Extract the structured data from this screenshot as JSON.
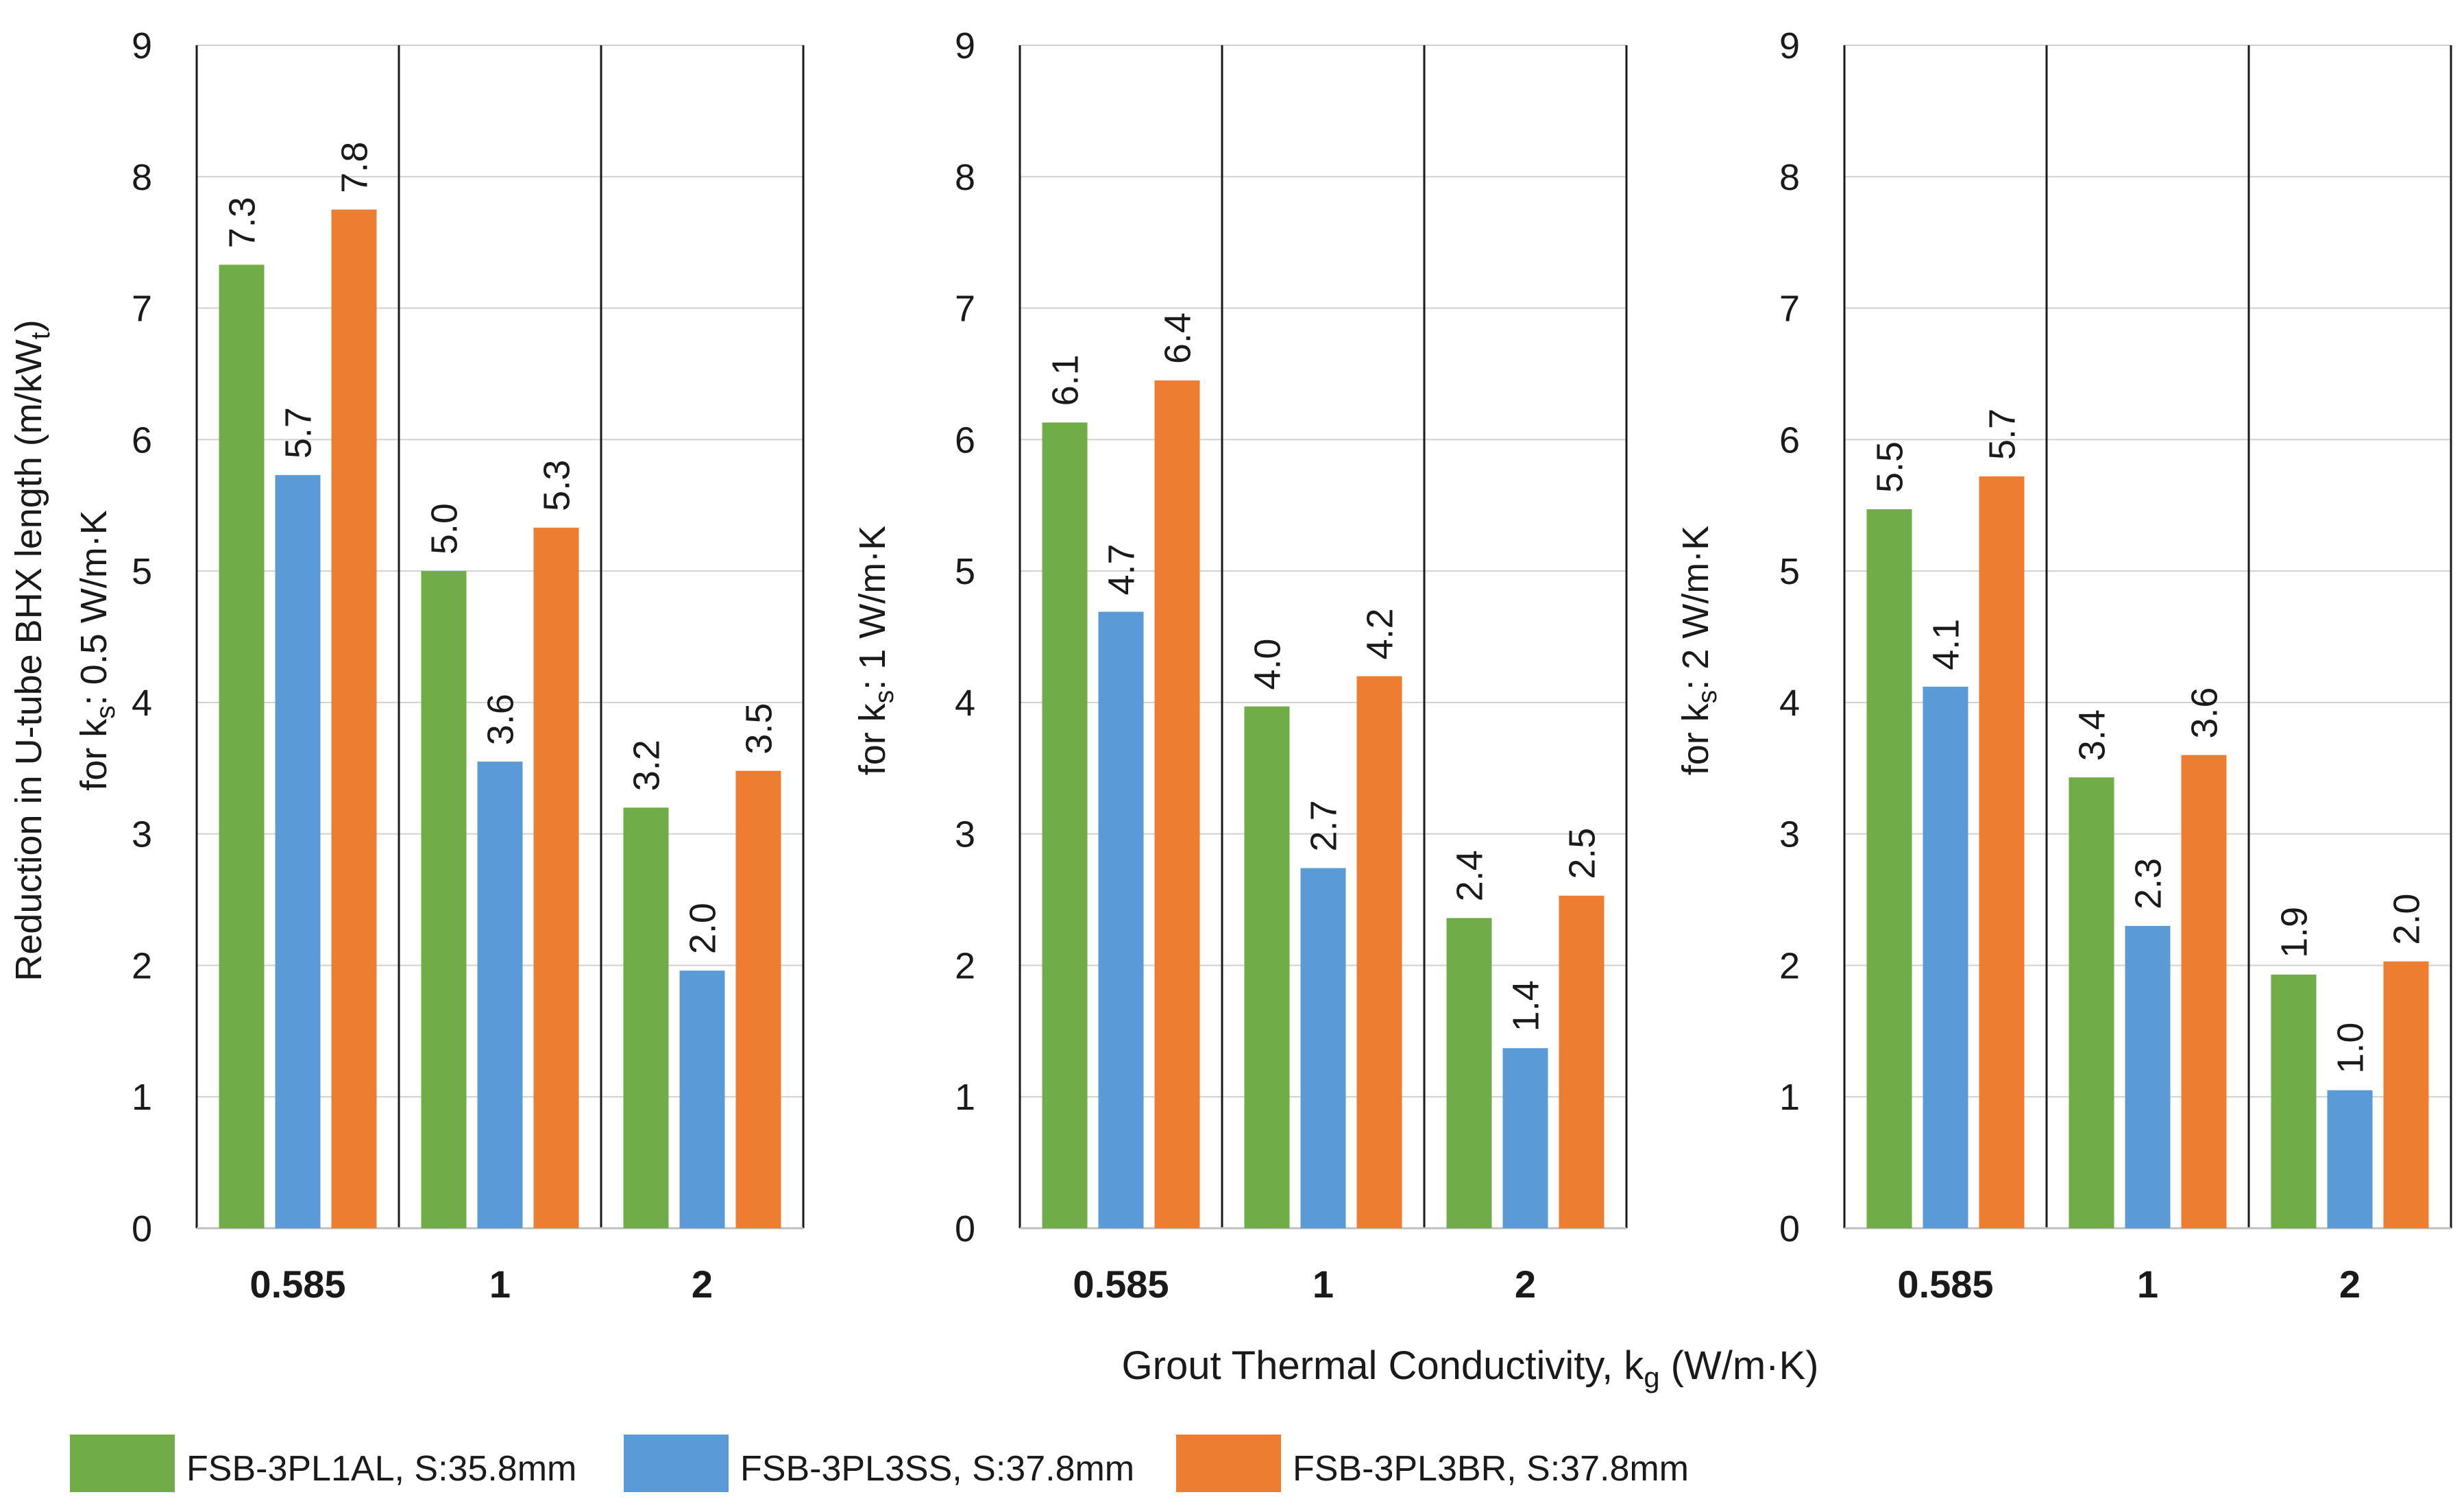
{
  "chart_data": {
    "type": "bar",
    "xlabel": {
      "prefix": "Grout Thermal Conductivity,  k",
      "sub": "g",
      "suffix": " (W/m·K)"
    },
    "ylabel_main": {
      "prefix": "Reduction in U-tube BHX length (m/kW",
      "sub": "t",
      "suffix": ")"
    },
    "ylim": [
      0,
      9
    ],
    "yticks": [
      "0",
      "1",
      "2",
      "3",
      "4",
      "5",
      "6",
      "7",
      "8",
      "9"
    ],
    "categories": [
      "0.585",
      "1",
      "2"
    ],
    "series_names": [
      "FSB-3PL1AL, S:35.8mm",
      "FSB-3PL3SS, S:37.8mm",
      "FSB-3PL3BR, S:37.8mm"
    ],
    "colors": [
      "#70ad47",
      "#5b9bd5",
      "#ed7d31"
    ],
    "panels": [
      {
        "ylabel": {
          "prefix": "for k",
          "sub": "s",
          "suffix": ": 0.5 W/m·K"
        },
        "values": [
          [
            7.33,
            5.73,
            7.75
          ],
          [
            5.0,
            3.55,
            5.33
          ],
          [
            3.2,
            1.96,
            3.48
          ]
        ],
        "labels": [
          [
            "7.3",
            "5.7",
            "7.8"
          ],
          [
            "5.0",
            "3.6",
            "5.3"
          ],
          [
            "3.2",
            "2.0",
            "3.5"
          ]
        ]
      },
      {
        "ylabel": {
          "prefix": "for k",
          "sub": "s",
          "suffix": ": 1 W/m·K"
        },
        "values": [
          [
            6.13,
            4.69,
            6.45
          ],
          [
            3.97,
            2.74,
            4.2
          ],
          [
            2.36,
            1.37,
            2.53
          ]
        ],
        "labels": [
          [
            "6.1",
            "4.7",
            "6.4"
          ],
          [
            "4.0",
            "2.7",
            "4.2"
          ],
          [
            "2.4",
            "1.4",
            "2.5"
          ]
        ]
      },
      {
        "ylabel": {
          "prefix": "for k",
          "sub": "s",
          "suffix": ": 2 W/m·K"
        },
        "values": [
          [
            5.47,
            4.12,
            5.72
          ],
          [
            3.43,
            2.3,
            3.6
          ],
          [
            1.93,
            1.05,
            2.03
          ]
        ],
        "labels": [
          [
            "5.5",
            "4.1",
            "5.7"
          ],
          [
            "3.4",
            "2.3",
            "3.6"
          ],
          [
            "1.9",
            "1.0",
            "2.0"
          ]
        ]
      }
    ]
  }
}
